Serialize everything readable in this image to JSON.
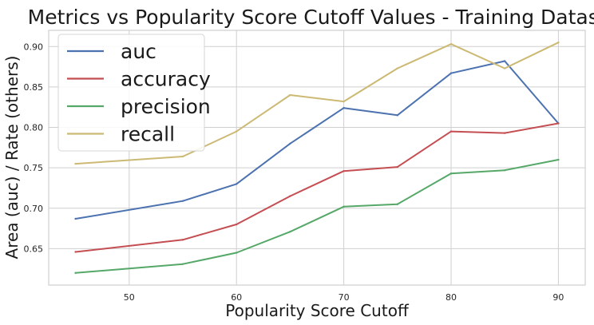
{
  "chart_data": {
    "type": "line",
    "title": "Metrics vs Popularity Score Cutoff Values - Training Dataset:",
    "xlabel": "Popularity Score Cutoff",
    "ylabel": "Area (auc) / Rate (others)",
    "x": [
      45,
      55,
      60,
      65,
      70,
      75,
      80,
      85,
      90
    ],
    "xlim": [
      42.5,
      92.5
    ],
    "ylim": [
      0.605,
      0.92
    ],
    "xticks": [
      50,
      60,
      70,
      80,
      90
    ],
    "xtick_labels": [
      "50",
      "60",
      "70",
      "80",
      "90"
    ],
    "yticks": [
      0.65,
      0.7,
      0.75,
      0.8,
      0.85,
      0.9
    ],
    "ytick_labels": [
      "0.65",
      "0.70",
      "0.75",
      "0.80",
      "0.85",
      "0.90"
    ],
    "grid": true,
    "legend_position": "top-left",
    "series": [
      {
        "name": "auc",
        "color": "#4c72b0",
        "values": [
          0.687,
          0.709,
          0.73,
          0.78,
          0.824,
          0.815,
          0.867,
          0.882,
          0.805
        ]
      },
      {
        "name": "accuracy",
        "color": "#c44e52",
        "values": [
          0.646,
          0.661,
          0.68,
          0.715,
          0.746,
          0.751,
          0.795,
          0.793,
          0.805
        ]
      },
      {
        "name": "precision",
        "color": "#55a868",
        "values": [
          0.62,
          0.631,
          0.645,
          0.671,
          0.702,
          0.705,
          0.743,
          0.747,
          0.76
        ]
      },
      {
        "name": "recall",
        "color": "#ccb974",
        "values": [
          0.755,
          0.764,
          0.795,
          0.84,
          0.832,
          0.873,
          0.903,
          0.873,
          0.905
        ]
      }
    ]
  }
}
